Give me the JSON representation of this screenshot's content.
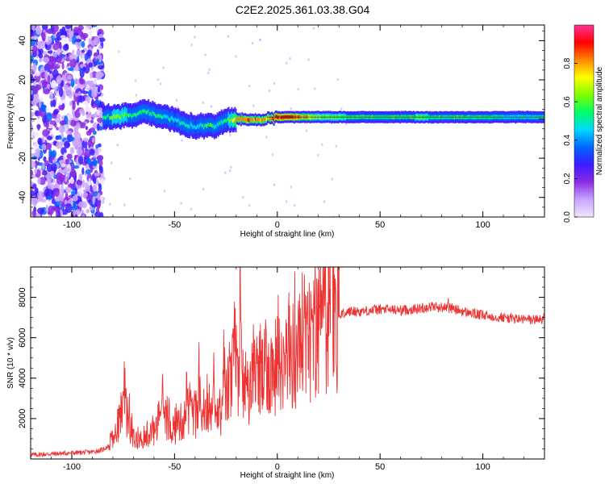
{
  "title": "C2E2.2025.361.03.38.G04",
  "chart_data": [
    {
      "type": "heatmap",
      "xlabel": "Height of straight line (km)",
      "ylabel": "Frequency (Hz)",
      "xlim": [
        -120,
        130
      ],
      "ylim": [
        -50,
        48
      ],
      "x_ticks": [
        -100,
        -50,
        0,
        50,
        100
      ],
      "y_ticks": [
        -40,
        -20,
        0,
        20,
        40
      ],
      "grid": false,
      "colorbar": {
        "label": "Normalized spectral amplitude",
        "range": [
          0,
          1
        ],
        "ticks": [
          0.0,
          0.2,
          0.4,
          0.6,
          0.8
        ],
        "colormap": [
          "#f0e6ff",
          "#c9a6ff",
          "#8a2be2",
          "#3b1bff",
          "#0066ff",
          "#00d8ff",
          "#00ff66",
          "#7fff00",
          "#ffff00",
          "#ff8800",
          "#ff0000",
          "#ff3399"
        ]
      },
      "ridge": {
        "x": [
          -85,
          -80,
          -75,
          -70,
          -65,
          -60,
          -55,
          -50,
          -45,
          -40,
          -35,
          -30,
          -25,
          -20,
          -15,
          -10,
          -5,
          0,
          5,
          10,
          20,
          30,
          40,
          50,
          60,
          70,
          80,
          90,
          100,
          110,
          120,
          130
        ],
        "frequency": [
          1,
          1,
          2,
          2,
          4,
          2,
          1,
          0,
          -3,
          -4,
          -3,
          -3,
          -1,
          0,
          0,
          0,
          0,
          1,
          1,
          1,
          1,
          1,
          1,
          1,
          1,
          1,
          1,
          1,
          1,
          1,
          1,
          1
        ],
        "amplitude": [
          0.5,
          0.6,
          0.6,
          0.55,
          0.5,
          0.55,
          0.5,
          0.45,
          0.5,
          0.45,
          0.55,
          0.5,
          0.55,
          0.8,
          0.85,
          0.8,
          0.8,
          0.9,
          0.9,
          0.85,
          0.65,
          0.6,
          0.55,
          0.55,
          0.55,
          0.6,
          0.55,
          0.55,
          0.55,
          0.5,
          0.5,
          0.5
        ]
      },
      "noise_region_x": [
        -120,
        -85
      ]
    },
    {
      "type": "line",
      "xlabel": "Height of straight line (km)",
      "ylabel": "SNR (10 * v/v)",
      "xlim": [
        -120,
        130
      ],
      "ylim": [
        0,
        9500
      ],
      "x_ticks": [
        -100,
        -50,
        0,
        50,
        100
      ],
      "y_ticks": [
        2000,
        4000,
        6000,
        8000
      ],
      "grid": false,
      "color": "#ee3333",
      "x": [
        -120,
        -110,
        -100,
        -90,
        -85,
        -80,
        -78,
        -75,
        -72,
        -70,
        -65,
        -60,
        -55,
        -50,
        -45,
        -40,
        -35,
        -30,
        -25,
        -22,
        -20,
        -18,
        -15,
        -10,
        -5,
        0,
        5,
        10,
        15,
        20,
        25,
        30,
        35,
        40,
        45,
        50,
        55,
        60,
        65,
        70,
        75,
        80,
        85,
        90,
        95,
        100,
        105,
        110,
        115,
        120,
        125,
        130
      ],
      "y": [
        200,
        250,
        300,
        350,
        450,
        800,
        1500,
        2600,
        1800,
        1200,
        900,
        1300,
        1800,
        1500,
        2000,
        2200,
        2400,
        1800,
        3000,
        4000,
        5200,
        3800,
        3500,
        3700,
        4300,
        4600,
        4900,
        5300,
        5800,
        6200,
        6800,
        7100,
        7300,
        7300,
        7350,
        7400,
        7400,
        7350,
        7400,
        7450,
        7550,
        7500,
        7450,
        7300,
        7200,
        7100,
        7050,
        7000,
        6950,
        6900,
        6900,
        6950
      ],
      "peaks": [
        {
          "x": -74,
          "y": 3300
        },
        {
          "x": -56,
          "y": 3700
        },
        {
          "x": -44,
          "y": 4100
        },
        {
          "x": -38,
          "y": 4400
        },
        {
          "x": -31,
          "y": 4900
        },
        {
          "x": -26,
          "y": 5700
        },
        {
          "x": -21,
          "y": 6000
        },
        {
          "x": -18,
          "y": 9500
        },
        {
          "x": -11,
          "y": 5900
        },
        {
          "x": 15,
          "y": 6900
        },
        {
          "x": 23,
          "y": 7100
        },
        {
          "x": 83,
          "y": 7950
        }
      ]
    }
  ]
}
